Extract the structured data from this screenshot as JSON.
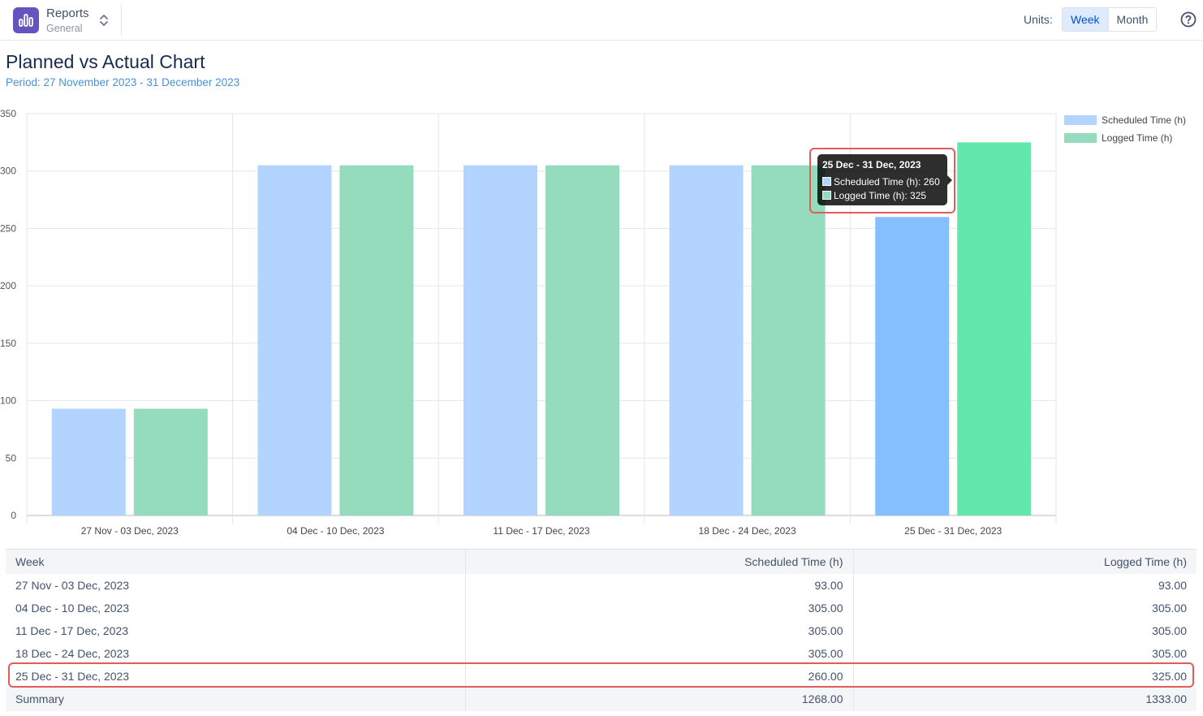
{
  "header": {
    "app_name": "Reports",
    "app_sub": "General",
    "units_label": "Units:",
    "units": [
      {
        "label": "Week",
        "active": true
      },
      {
        "label": "Month",
        "active": false
      }
    ]
  },
  "page": {
    "title": "Planned vs Actual Chart",
    "period": "Period: 27 November 2023 - 31 December 2023"
  },
  "colors": {
    "scheduled": "#b3d4ff",
    "scheduled_hover": "#85bffe",
    "logged": "#95dcbe",
    "logged_hover": "#62e8aa",
    "highlight": "#e35b5b"
  },
  "chart_data": {
    "type": "bar",
    "categories": [
      "27 Nov - 03 Dec, 2023",
      "04 Dec - 10 Dec, 2023",
      "11 Dec - 17 Dec, 2023",
      "18 Dec - 24 Dec, 2023",
      "25 Dec - 31 Dec, 2023"
    ],
    "series": [
      {
        "name": "Scheduled Time (h)",
        "values": [
          93,
          305,
          305,
          305,
          260
        ]
      },
      {
        "name": "Logged Time (h)",
        "values": [
          93,
          305,
          305,
          305,
          325
        ]
      }
    ],
    "ylim": [
      0,
      350
    ],
    "yticks": [
      0,
      50,
      100,
      150,
      200,
      250,
      300,
      350
    ],
    "grid": true,
    "legend": "top-right",
    "hovered_category": 4
  },
  "tooltip": {
    "title": "25 Dec - 31 Dec, 2023",
    "row1": "Scheduled Time (h): 260",
    "row2": "Logged Time (h): 325"
  },
  "table": {
    "columns": [
      "Week",
      "Scheduled Time (h)",
      "Logged Time (h)"
    ],
    "rows": [
      [
        "27 Nov - 03 Dec, 2023",
        "93.00",
        "93.00"
      ],
      [
        "04 Dec - 10 Dec, 2023",
        "305.00",
        "305.00"
      ],
      [
        "11 Dec - 17 Dec, 2023",
        "305.00",
        "305.00"
      ],
      [
        "18 Dec - 24 Dec, 2023",
        "305.00",
        "305.00"
      ],
      [
        "25 Dec - 31 Dec, 2023",
        "260.00",
        "325.00"
      ]
    ],
    "summary": [
      "Summary",
      "1268.00",
      "1333.00"
    ],
    "highlighted_row": 4
  }
}
